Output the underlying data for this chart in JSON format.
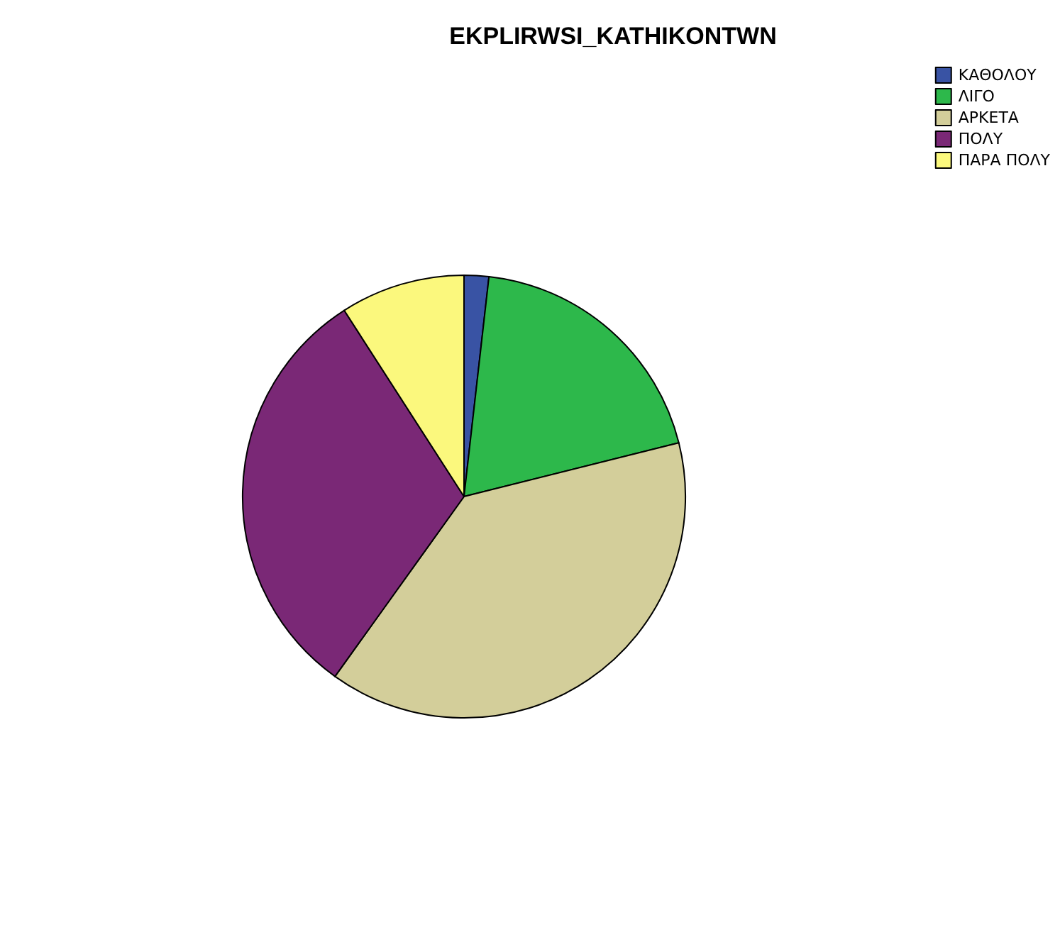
{
  "chart_data": {
    "type": "pie",
    "title": "EKPLIRWSI_KATHIKONTWN",
    "categories": [
      "ΚΑΘΟΛΟΥ",
      "ΛΙΓΟ",
      "ΑΡΚΕΤΑ",
      "ΠΟΛΥ",
      "ΠΑΡΑ ΠΟΛΥ"
    ],
    "values": [
      1.8,
      19.3,
      38.8,
      31.0,
      9.1
    ],
    "colors": [
      "#3953a4",
      "#2db84b",
      "#d3ce9a",
      "#7a2876",
      "#fbf87d"
    ],
    "legend": "top right"
  }
}
